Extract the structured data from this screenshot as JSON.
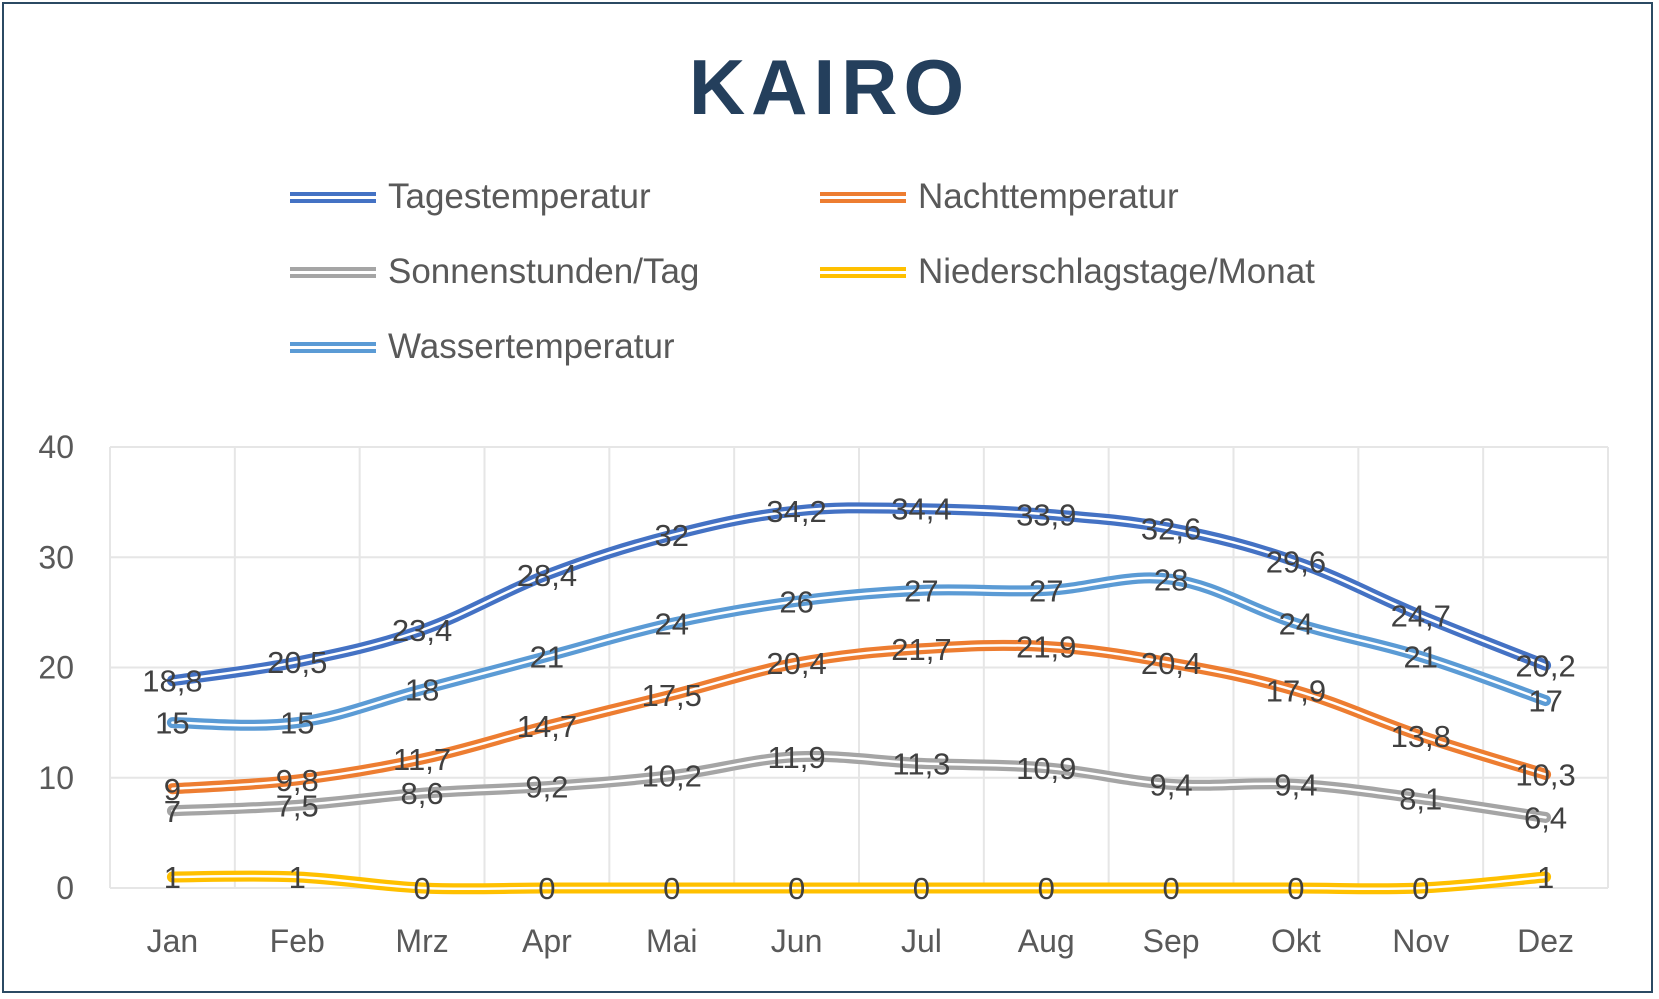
{
  "chart_data": {
    "type": "line",
    "title": "KAIRO",
    "categories": [
      "Jan",
      "Feb",
      "Mrz",
      "Apr",
      "Mai",
      "Jun",
      "Jul",
      "Aug",
      "Sep",
      "Okt",
      "Nov",
      "Dez"
    ],
    "ylim": [
      0,
      40
    ],
    "yticks": [
      "0",
      "10",
      "20",
      "30",
      "40"
    ],
    "grid": true,
    "legend_position": "top",
    "series": [
      {
        "name": "Tagestemperatur",
        "color": "#4472C4",
        "values": [
          18.8,
          20.5,
          23.4,
          28.4,
          32,
          34.2,
          34.4,
          33.9,
          32.6,
          29.6,
          24.7,
          20.2
        ],
        "labels": [
          "18,8",
          "20,5",
          "23,4",
          "28,4",
          "32",
          "34,2",
          "34,4",
          "33,9",
          "32,6",
          "29,6",
          "24,7",
          "20,2"
        ]
      },
      {
        "name": "Nachttemperatur",
        "color": "#ED7D31",
        "values": [
          9,
          9.8,
          11.7,
          14.7,
          17.5,
          20.4,
          21.7,
          21.9,
          20.4,
          17.9,
          13.8,
          10.3
        ],
        "labels": [
          "9",
          "9,8",
          "11,7",
          "14,7",
          "17,5",
          "20,4",
          "21,7",
          "21,9",
          "20,4",
          "17,9",
          "13,8",
          "10,3"
        ]
      },
      {
        "name": "Sonnenstunden/Tag",
        "color": "#A5A5A5",
        "values": [
          7,
          7.5,
          8.6,
          9.2,
          10.2,
          11.9,
          11.3,
          10.9,
          9.4,
          9.4,
          8.1,
          6.4
        ],
        "labels": [
          "7",
          "7,5",
          "8,6",
          "9,2",
          "10,2",
          "11,9",
          "11,3",
          "10,9",
          "9,4",
          "9,4",
          "8,1",
          "6,4"
        ]
      },
      {
        "name": "Niederschlagstage/Monat",
        "color": "#FFC000",
        "values": [
          1,
          1,
          0,
          0,
          0,
          0,
          0,
          0,
          0,
          0,
          0,
          1
        ],
        "labels": [
          "1",
          "1",
          "0",
          "0",
          "0",
          "0",
          "0",
          "0",
          "0",
          "0",
          "0",
          "1"
        ]
      },
      {
        "name": "Wassertemperatur",
        "color": "#5B9BD5",
        "values": [
          15,
          15,
          18,
          21,
          24,
          26,
          27,
          27,
          28,
          24,
          21,
          17
        ],
        "labels": [
          "15",
          "15",
          "18",
          "21",
          "24",
          "26",
          "27",
          "27",
          "28",
          "24",
          "21",
          "17"
        ]
      }
    ]
  }
}
